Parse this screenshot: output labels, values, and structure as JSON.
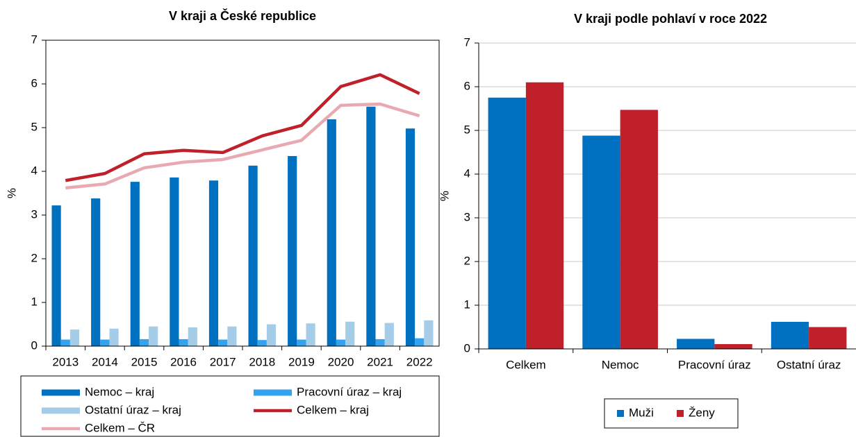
{
  "chart_data": [
    {
      "type": "bar",
      "title": "V kraji a České republice",
      "ylabel": "%",
      "categories": [
        "2013",
        "2014",
        "2015",
        "2016",
        "2017",
        "2018",
        "2019",
        "2020",
        "2021",
        "2022"
      ],
      "ylim": [
        0,
        7
      ],
      "yticks": [
        0,
        1,
        2,
        3,
        4,
        5,
        6,
        7
      ],
      "grid": false,
      "legend": "bottom",
      "series": [
        {
          "name": "Nemoc – kraj",
          "color": "#0070c0",
          "type": "bar",
          "values": [
            3.22,
            3.38,
            3.76,
            3.86,
            3.79,
            4.13,
            4.35,
            5.19,
            5.48,
            4.98
          ]
        },
        {
          "name": "Pracovní úraz – kraj",
          "color": "#33a3f0",
          "type": "bar",
          "values": [
            0.15,
            0.15,
            0.16,
            0.16,
            0.15,
            0.14,
            0.15,
            0.15,
            0.16,
            0.18
          ]
        },
        {
          "name": "Ostatní úraz – kraj",
          "color": "#a6cde8",
          "type": "bar",
          "values": [
            0.38,
            0.4,
            0.45,
            0.43,
            0.45,
            0.5,
            0.52,
            0.56,
            0.53,
            0.59
          ]
        },
        {
          "name": "Celkem – kraj",
          "color": "#c0202a",
          "type": "line",
          "values": [
            3.79,
            3.95,
            4.4,
            4.48,
            4.43,
            4.81,
            5.05,
            5.94,
            6.21,
            5.78
          ]
        },
        {
          "name": "Celkem – ČR",
          "color": "#e8aab0",
          "type": "line",
          "values": [
            3.62,
            3.71,
            4.08,
            4.21,
            4.27,
            4.49,
            4.71,
            5.51,
            5.54,
            5.27
          ]
        }
      ]
    },
    {
      "type": "bar",
      "title": "V kraji podle pohlaví v roce 2022",
      "ylabel": "%",
      "categories": [
        "Celkem",
        "Nemoc",
        "Pracovní úraz",
        "Ostatní úraz"
      ],
      "ylim": [
        0,
        7
      ],
      "yticks": [
        0,
        1,
        2,
        3,
        4,
        5,
        6,
        7
      ],
      "grid": true,
      "legend": "bottom",
      "series": [
        {
          "name": "Muži",
          "color": "#0070c0",
          "type": "bar",
          "values": [
            5.75,
            4.88,
            0.23,
            0.62
          ]
        },
        {
          "name": "Ženy",
          "color": "#c0202a",
          "type": "bar",
          "values": [
            6.1,
            5.47,
            0.11,
            0.5
          ]
        }
      ]
    }
  ]
}
